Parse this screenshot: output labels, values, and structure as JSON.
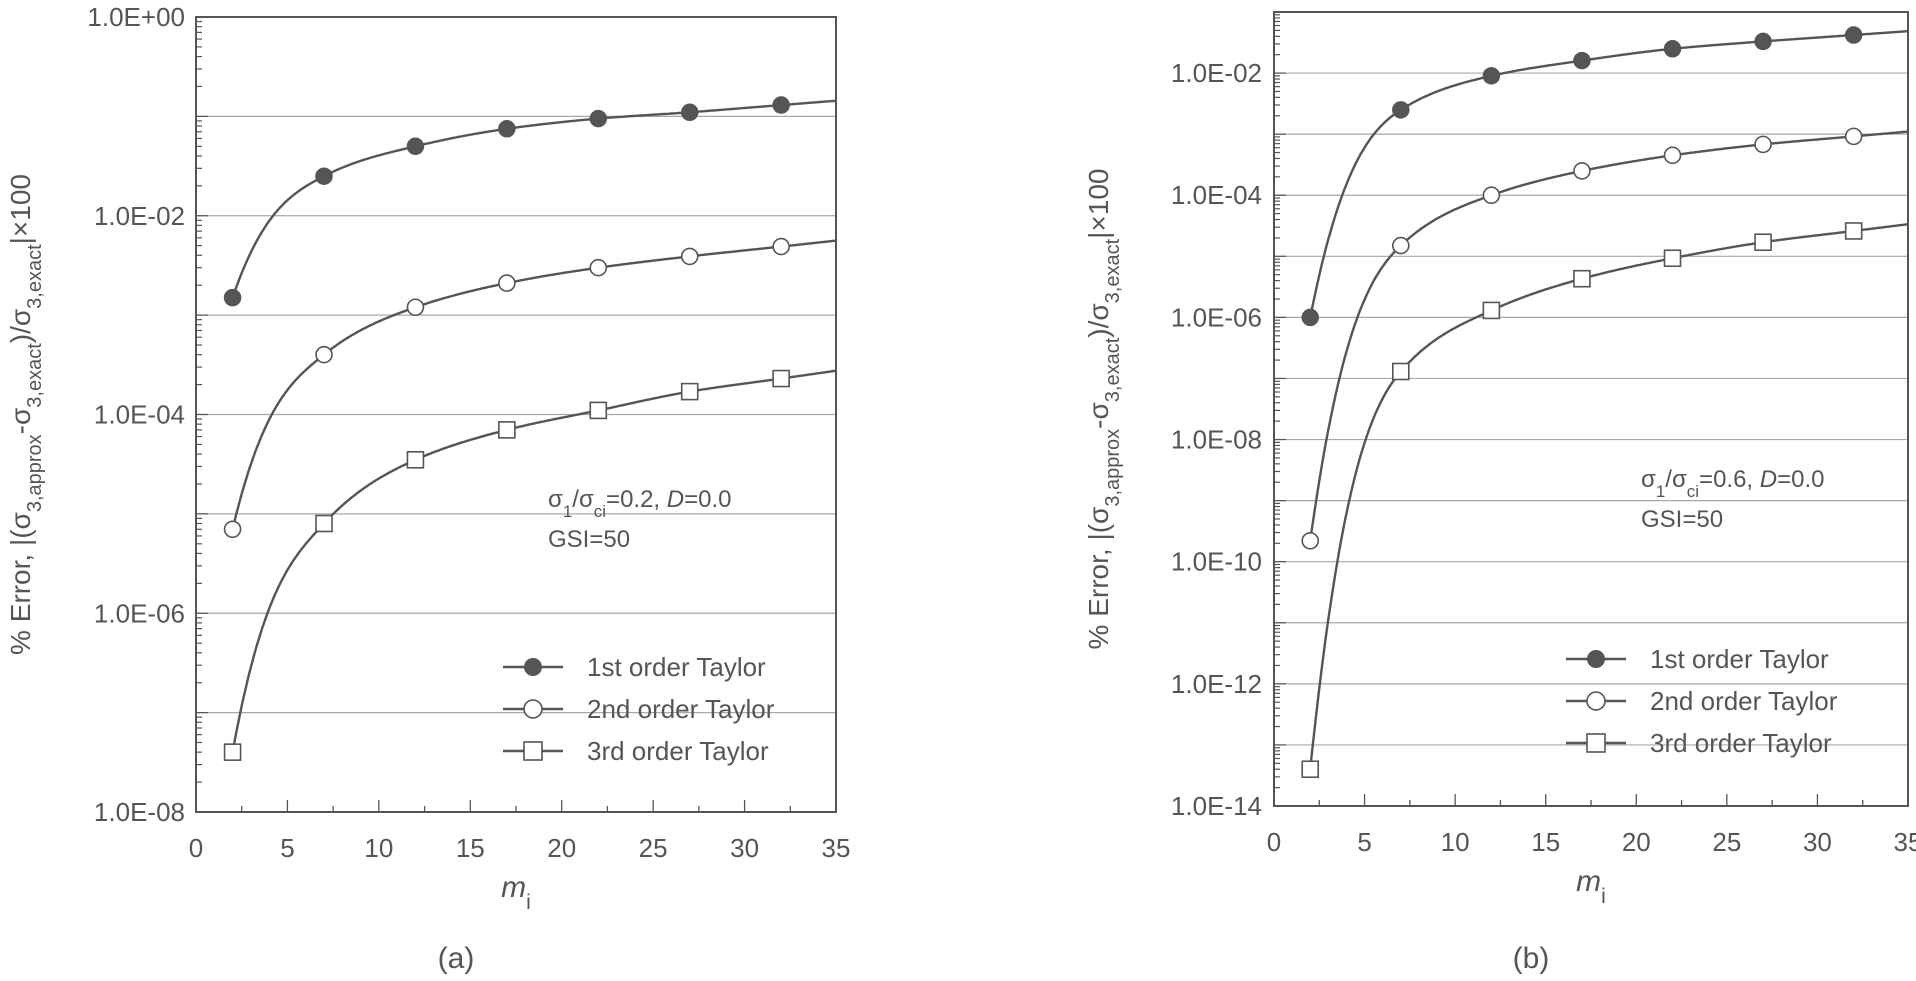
{
  "chart_data": [
    {
      "panel_label": "(a)",
      "type": "line",
      "log_scale_y": true,
      "xlabel": "m_i",
      "ylabel": "% Error, |(σ3,approx-σ3,exact)/σ3,exact|×100",
      "xlim": [
        0,
        35
      ],
      "ylim": [
        1e-08,
        1
      ],
      "x_ticks": [
        0,
        5,
        10,
        15,
        20,
        25,
        30,
        35
      ],
      "y_tick_labels": [
        "1.0E-08",
        "1.0E-06",
        "1.0E-04",
        "1.0E-02",
        "1.0E+00"
      ],
      "grid": true,
      "annotation": {
        "line1": "σ1/σci=0.2, D=0.0",
        "line2": "GSI=50"
      },
      "legend_position": "bottom-right",
      "series": [
        {
          "name": "1st order Taylor",
          "marker": "filled-circle",
          "x": [
            2,
            7,
            12,
            17,
            22,
            27,
            32
          ],
          "y": [
            0.0015,
            0.025,
            0.05,
            0.075,
            0.095,
            0.11,
            0.13
          ]
        },
        {
          "name": "2nd order Taylor",
          "marker": "open-circle",
          "x": [
            2,
            7,
            12,
            17,
            22,
            27,
            32
          ],
          "y": [
            7e-06,
            0.0004,
            0.0012,
            0.0021,
            0.003,
            0.0039,
            0.0049
          ]
        },
        {
          "name": "3rd order Taylor",
          "marker": "open-square",
          "x": [
            2,
            7,
            12,
            17,
            22,
            27,
            32
          ],
          "y": [
            4e-08,
            8e-06,
            3.5e-05,
            7e-05,
            0.00011,
            0.00017,
            0.00023
          ]
        }
      ]
    },
    {
      "panel_label": "(b)",
      "type": "line",
      "log_scale_y": true,
      "xlabel": "m_i",
      "ylabel": "% Error, |(σ3,approx-σ3,exact)/σ3,exact|×100",
      "xlim": [
        0,
        35
      ],
      "ylim": [
        1e-14,
        0.1
      ],
      "x_ticks": [
        0,
        5,
        10,
        15,
        20,
        25,
        30,
        35
      ],
      "y_tick_labels": [
        "1.0E-14",
        "1.0E-12",
        "1.0E-10",
        "1.0E-08",
        "1.0E-06",
        "1.0E-04",
        "1.0E-02"
      ],
      "grid": true,
      "annotation": {
        "line1": "σ1/σci=0.6, D=0.0",
        "line2": "GSI=50"
      },
      "legend_position": "bottom-right",
      "series": [
        {
          "name": "1st order Taylor",
          "marker": "filled-circle",
          "x": [
            2,
            7,
            12,
            17,
            22,
            27,
            32
          ],
          "y": [
            1e-06,
            0.0025,
            0.009,
            0.016,
            0.025,
            0.033,
            0.042
          ]
        },
        {
          "name": "2nd order Taylor",
          "marker": "open-circle",
          "x": [
            2,
            7,
            12,
            17,
            22,
            27,
            32
          ],
          "y": [
            2.2e-10,
            1.5e-05,
            0.0001,
            0.00025,
            0.00045,
            0.00068,
            0.00092
          ]
        },
        {
          "name": "3rd order Taylor",
          "marker": "open-square",
          "x": [
            2,
            7,
            12,
            17,
            22,
            27,
            32
          ],
          "y": [
            4e-14,
            1.3e-07,
            1.3e-06,
            4.3e-06,
            9.3e-06,
            1.7e-05,
            2.6e-05
          ]
        }
      ]
    }
  ]
}
